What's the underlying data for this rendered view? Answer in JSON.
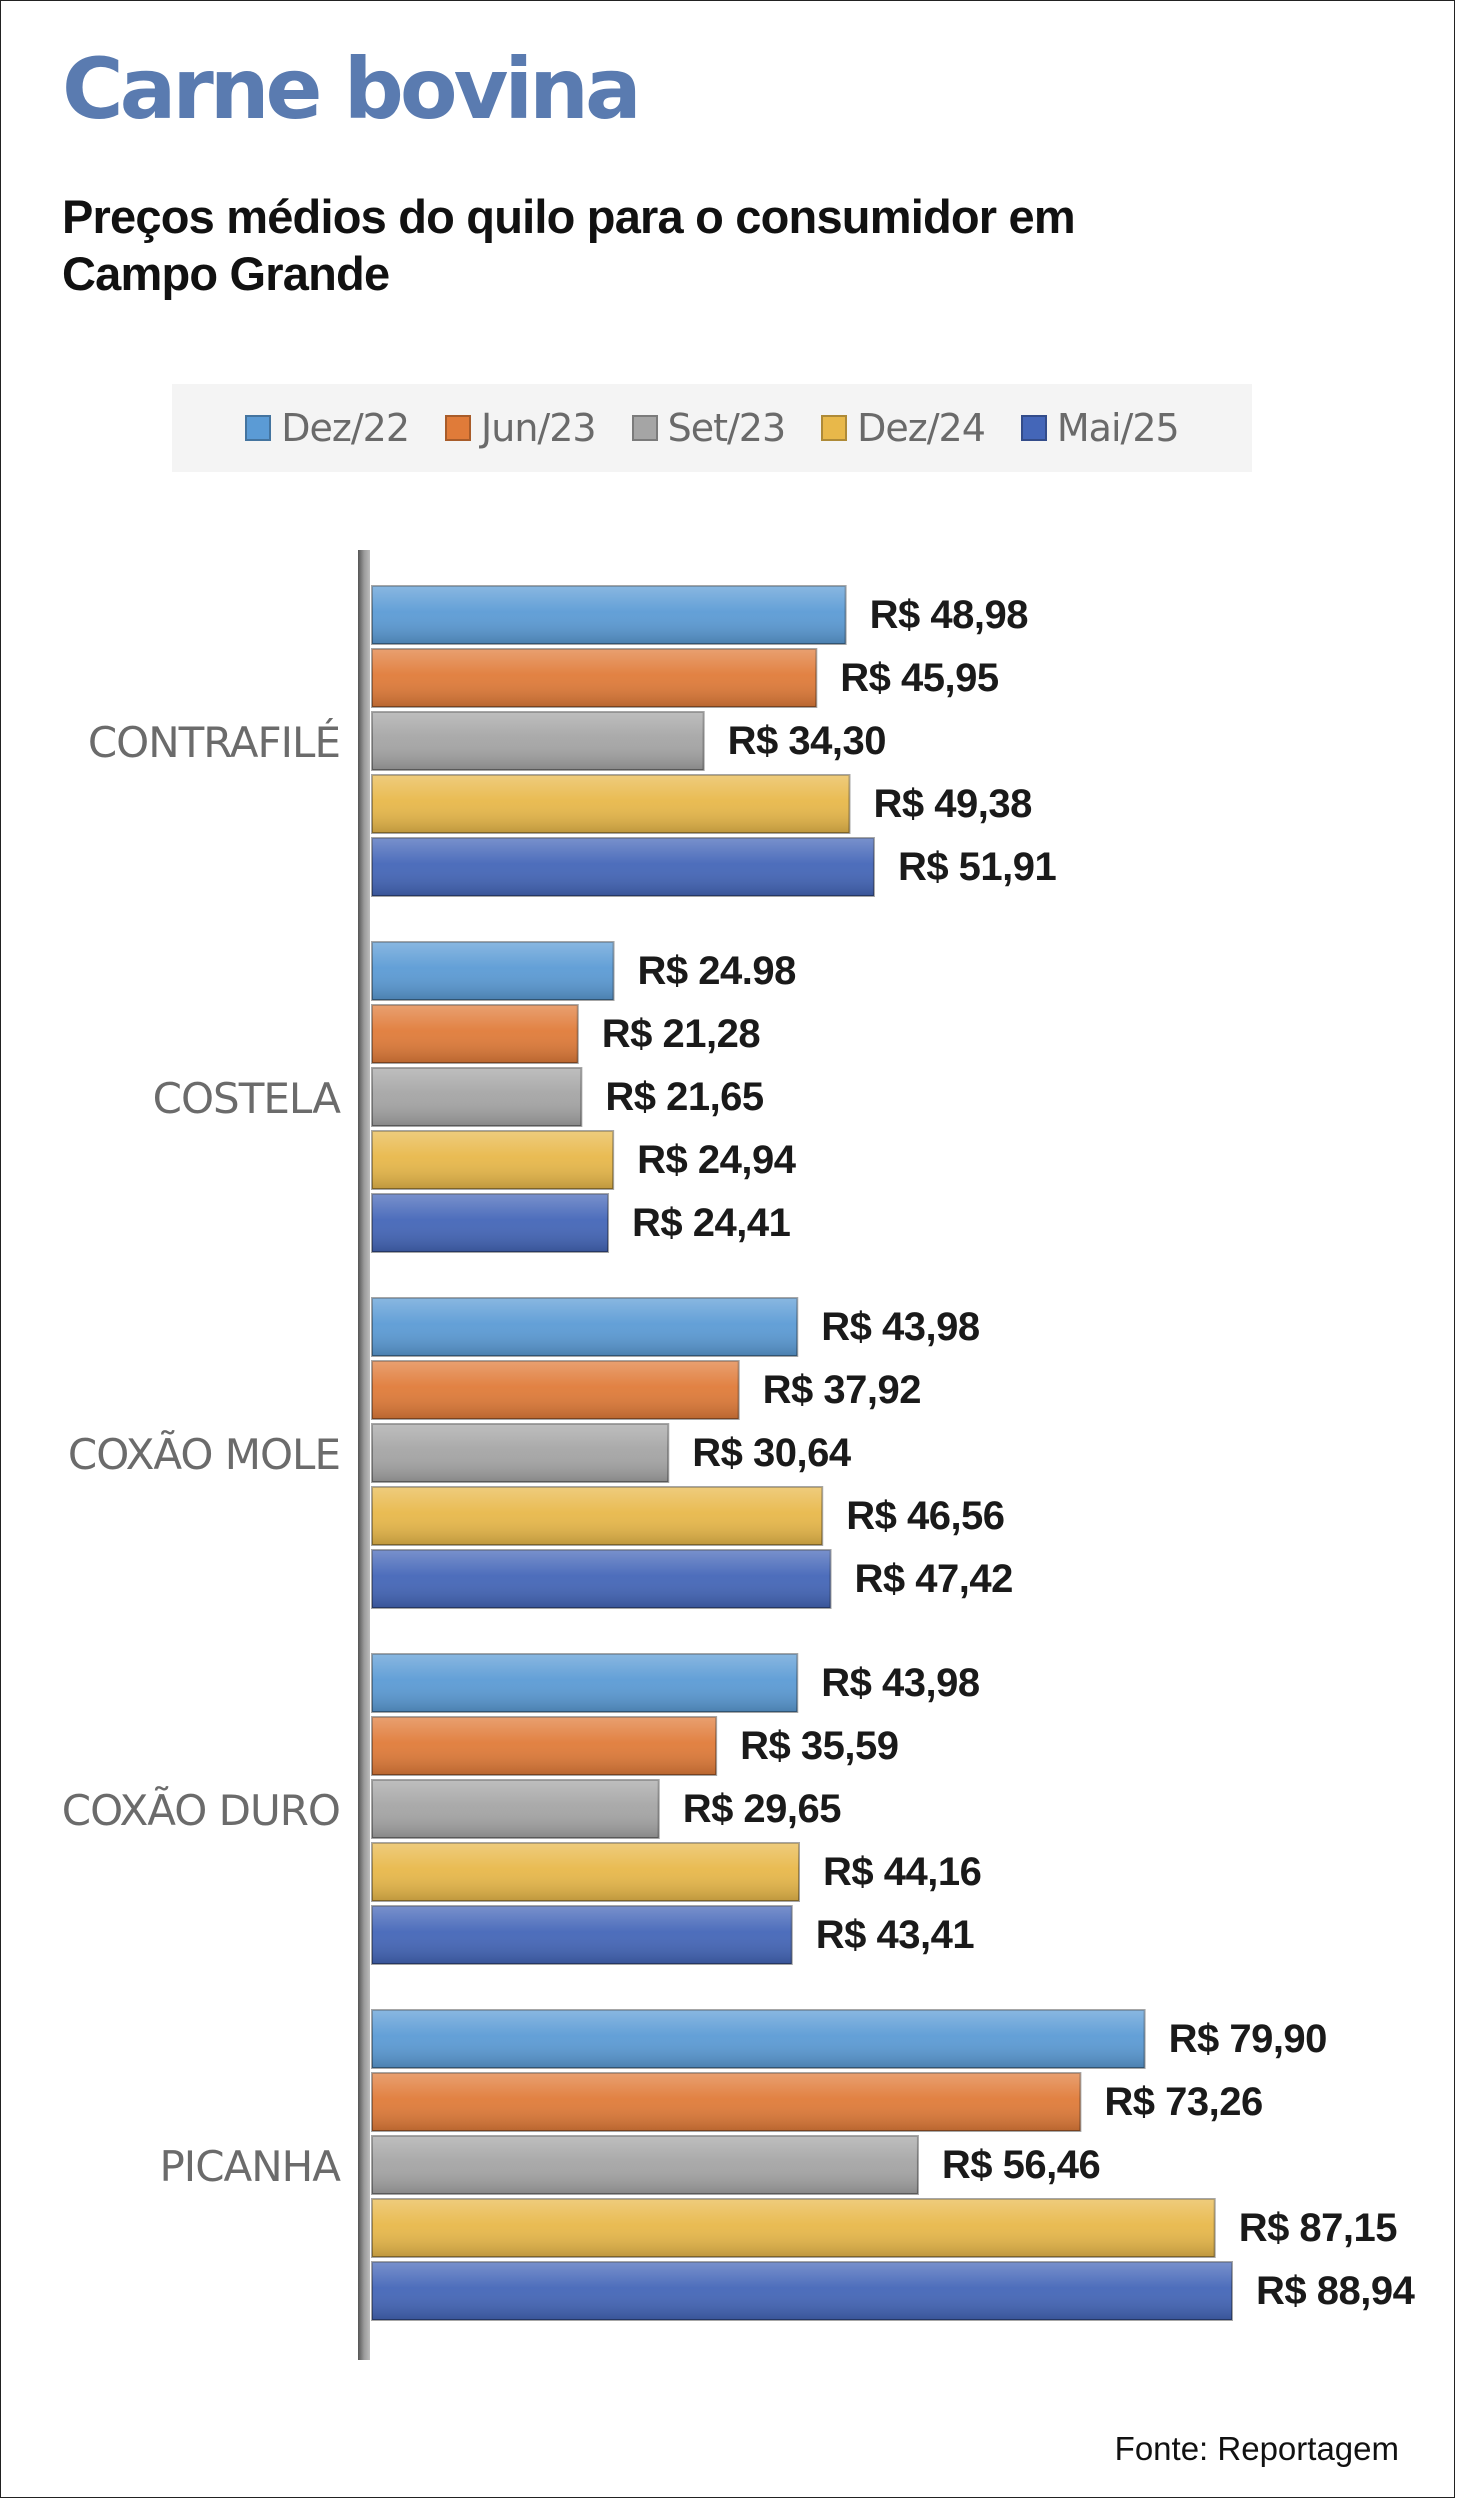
{
  "chart_data": {
    "type": "bar",
    "orientation": "horizontal",
    "title": "Carne bovina",
    "subtitle": "Preços médios do quilo para o consumidor em Campo Grande",
    "categories": [
      "CONTRAFILÉ",
      "COSTELA",
      "COXÃO MOLE",
      "COXÃO DURO",
      "PICANHA"
    ],
    "series": [
      {
        "name": "Dez/22",
        "color": "#5b9bd5",
        "values": [
          48.98,
          24.98,
          43.98,
          43.98,
          79.9
        ],
        "labels": [
          "R$ 48,98",
          "R$ 24.98",
          "R$ 43,98",
          "R$ 43,98",
          "R$ 79,90"
        ]
      },
      {
        "name": "Jun/23",
        "color": "#e07b39",
        "values": [
          45.95,
          21.28,
          37.92,
          35.59,
          73.26
        ],
        "labels": [
          "R$ 45,95",
          "R$ 21,28",
          "R$ 37,92",
          "R$ 35,59",
          "R$ 73,26"
        ]
      },
      {
        "name": "Set/23",
        "color": "#a5a5a5",
        "values": [
          34.3,
          21.65,
          30.64,
          29.65,
          56.46
        ],
        "labels": [
          "R$ 34,30",
          "R$ 21,65",
          "R$ 30,64",
          "R$ 29,65",
          "R$ 56,46"
        ]
      },
      {
        "name": "Dez/24",
        "color": "#e8b84a",
        "values": [
          49.38,
          24.94,
          46.56,
          44.16,
          87.15
        ],
        "labels": [
          "R$ 49,38",
          "R$ 24,94",
          "R$ 46,56",
          "R$ 44,16",
          "R$ 87,15"
        ]
      },
      {
        "name": "Mai/25",
        "color": "#4466b8",
        "values": [
          51.91,
          24.41,
          47.42,
          43.41,
          88.94
        ],
        "labels": [
          "R$ 51,91",
          "R$ 24,41",
          "R$ 47,42",
          "R$ 43,41",
          "R$ 88,94"
        ]
      }
    ],
    "xlim": [
      0,
      88.94
    ],
    "grid": false,
    "legend": "top"
  },
  "source": "Fonte: Reportagem"
}
